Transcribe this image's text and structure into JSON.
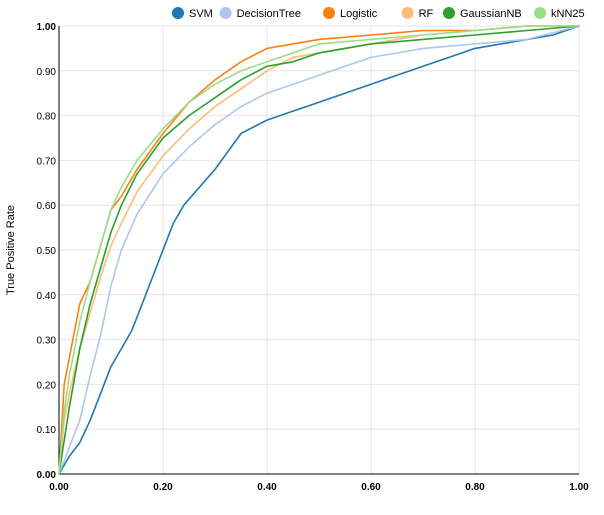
{
  "chart_data": {
    "type": "line",
    "title": "",
    "xlabel": "",
    "ylabel": "True Positive Rate",
    "xlim": [
      0,
      1
    ],
    "ylim": [
      0,
      1
    ],
    "grid": true,
    "legend_position": "top-right",
    "x_ticks": [
      "0.00",
      "0.20",
      "0.40",
      "0.60",
      "0.80",
      "1.00"
    ],
    "y_ticks": [
      "0.00",
      "0.10",
      "0.20",
      "0.30",
      "0.40",
      "0.50",
      "0.60",
      "0.70",
      "0.80",
      "0.90",
      "1.00"
    ],
    "series": [
      {
        "name": "SVM",
        "color": "#1f77b4",
        "x": [
          0,
          0.02,
          0.04,
          0.06,
          0.08,
          0.1,
          0.12,
          0.14,
          0.16,
          0.18,
          0.2,
          0.22,
          0.24,
          0.3,
          0.35,
          0.4,
          0.45,
          0.5,
          0.55,
          0.6,
          0.65,
          0.7,
          0.75,
          0.8,
          0.85,
          0.9,
          0.95,
          1.0
        ],
        "y": [
          0,
          0.04,
          0.07,
          0.12,
          0.18,
          0.24,
          0.28,
          0.32,
          0.38,
          0.44,
          0.5,
          0.56,
          0.6,
          0.68,
          0.76,
          0.79,
          0.81,
          0.83,
          0.85,
          0.87,
          0.89,
          0.91,
          0.93,
          0.95,
          0.96,
          0.97,
          0.98,
          1.0
        ]
      },
      {
        "name": "DecisionTree",
        "color": "#aec7e8",
        "x": [
          0,
          0.02,
          0.04,
          0.06,
          0.08,
          0.1,
          0.12,
          0.15,
          0.2,
          0.25,
          0.3,
          0.35,
          0.4,
          0.45,
          0.5,
          0.55,
          0.6,
          0.7,
          0.8,
          0.9,
          1.0
        ],
        "y": [
          0,
          0.06,
          0.12,
          0.22,
          0.31,
          0.42,
          0.5,
          0.58,
          0.67,
          0.73,
          0.78,
          0.82,
          0.85,
          0.87,
          0.89,
          0.91,
          0.93,
          0.95,
          0.96,
          0.97,
          1.0
        ]
      },
      {
        "name": "Logistic",
        "color": "#ff7f0e",
        "x": [
          0,
          0.01,
          0.02,
          0.04,
          0.06,
          0.08,
          0.1,
          0.12,
          0.15,
          0.2,
          0.25,
          0.3,
          0.35,
          0.4,
          0.45,
          0.5,
          0.6,
          0.7,
          0.8,
          0.9,
          1.0
        ],
        "y": [
          0,
          0.2,
          0.26,
          0.38,
          0.43,
          0.51,
          0.59,
          0.62,
          0.68,
          0.76,
          0.83,
          0.88,
          0.92,
          0.95,
          0.96,
          0.97,
          0.98,
          0.99,
          0.99,
          1.0,
          1.0
        ]
      },
      {
        "name": "RF",
        "color": "#ffbb78",
        "x": [
          0,
          0.01,
          0.02,
          0.04,
          0.06,
          0.08,
          0.1,
          0.12,
          0.15,
          0.2,
          0.25,
          0.3,
          0.35,
          0.4,
          0.45,
          0.5,
          0.6,
          0.7,
          0.8,
          0.9,
          1.0
        ],
        "y": [
          0,
          0.12,
          0.18,
          0.28,
          0.36,
          0.44,
          0.51,
          0.56,
          0.63,
          0.71,
          0.77,
          0.82,
          0.86,
          0.9,
          0.93,
          0.94,
          0.96,
          0.98,
          0.99,
          1.0,
          1.0
        ]
      },
      {
        "name": "GaussianNB",
        "color": "#2ca02c",
        "x": [
          0,
          0.02,
          0.04,
          0.06,
          0.08,
          0.1,
          0.12,
          0.15,
          0.2,
          0.25,
          0.3,
          0.35,
          0.4,
          0.45,
          0.5,
          0.6,
          0.7,
          0.8,
          0.9,
          1.0
        ],
        "y": [
          0,
          0.15,
          0.28,
          0.38,
          0.46,
          0.54,
          0.6,
          0.67,
          0.75,
          0.8,
          0.84,
          0.88,
          0.91,
          0.92,
          0.94,
          0.96,
          0.97,
          0.98,
          0.99,
          1.0
        ]
      },
      {
        "name": "kNN25",
        "color": "#98df8a",
        "x": [
          0,
          0.01,
          0.02,
          0.04,
          0.06,
          0.08,
          0.1,
          0.12,
          0.15,
          0.2,
          0.25,
          0.3,
          0.35,
          0.4,
          0.45,
          0.5,
          0.6,
          0.7,
          0.8,
          0.9,
          1.0
        ],
        "y": [
          0,
          0.14,
          0.22,
          0.34,
          0.43,
          0.51,
          0.59,
          0.64,
          0.7,
          0.77,
          0.83,
          0.87,
          0.9,
          0.92,
          0.94,
          0.96,
          0.97,
          0.98,
          0.99,
          1.0,
          1.0
        ]
      }
    ]
  }
}
